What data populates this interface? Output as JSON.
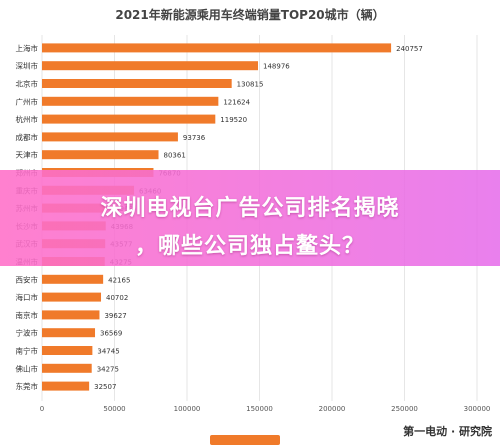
{
  "chart_data": {
    "type": "bar",
    "orientation": "horizontal",
    "title": "2021年新能源乘用车终端销量TOP20城市（辆）",
    "categories": [
      "上海市",
      "深圳市",
      "北京市",
      "广州市",
      "杭州市",
      "成都市",
      "天津市",
      "郑州市",
      "重庆市",
      "苏州市",
      "长沙市",
      "武汉市",
      "温州市",
      "西安市",
      "海口市",
      "南京市",
      "宁波市",
      "南宁市",
      "佛山市",
      "东莞市"
    ],
    "values": [
      240757,
      148976,
      130815,
      121624,
      119520,
      93736,
      80361,
      76870,
      63460,
      43968,
      43968,
      43577,
      43275,
      42165,
      40702,
      39627,
      36569,
      34745,
      34275,
      32507
    ],
    "value_labels": [
      "240757",
      "148976",
      "130815",
      "121624",
      "119520",
      "93736",
      "80361",
      "76870",
      "63460",
      "43968",
      "43968",
      "43577",
      "43275",
      "42165",
      "40702",
      "39627",
      "36569",
      "34745",
      "34275",
      "32507"
    ],
    "xlim": [
      0,
      300000
    ],
    "xticks": [
      "0",
      "50000",
      "100000",
      "150000",
      "200000",
      "250000",
      "300000"
    ],
    "grid": true,
    "bar_color": "#f07a2a"
  },
  "overlay": {
    "line1": "深圳电视台广告公司排名揭晓",
    "line2": "，哪些公司独占鳌头？"
  },
  "watermark": {
    "text": "第一电动 · 研究院"
  }
}
